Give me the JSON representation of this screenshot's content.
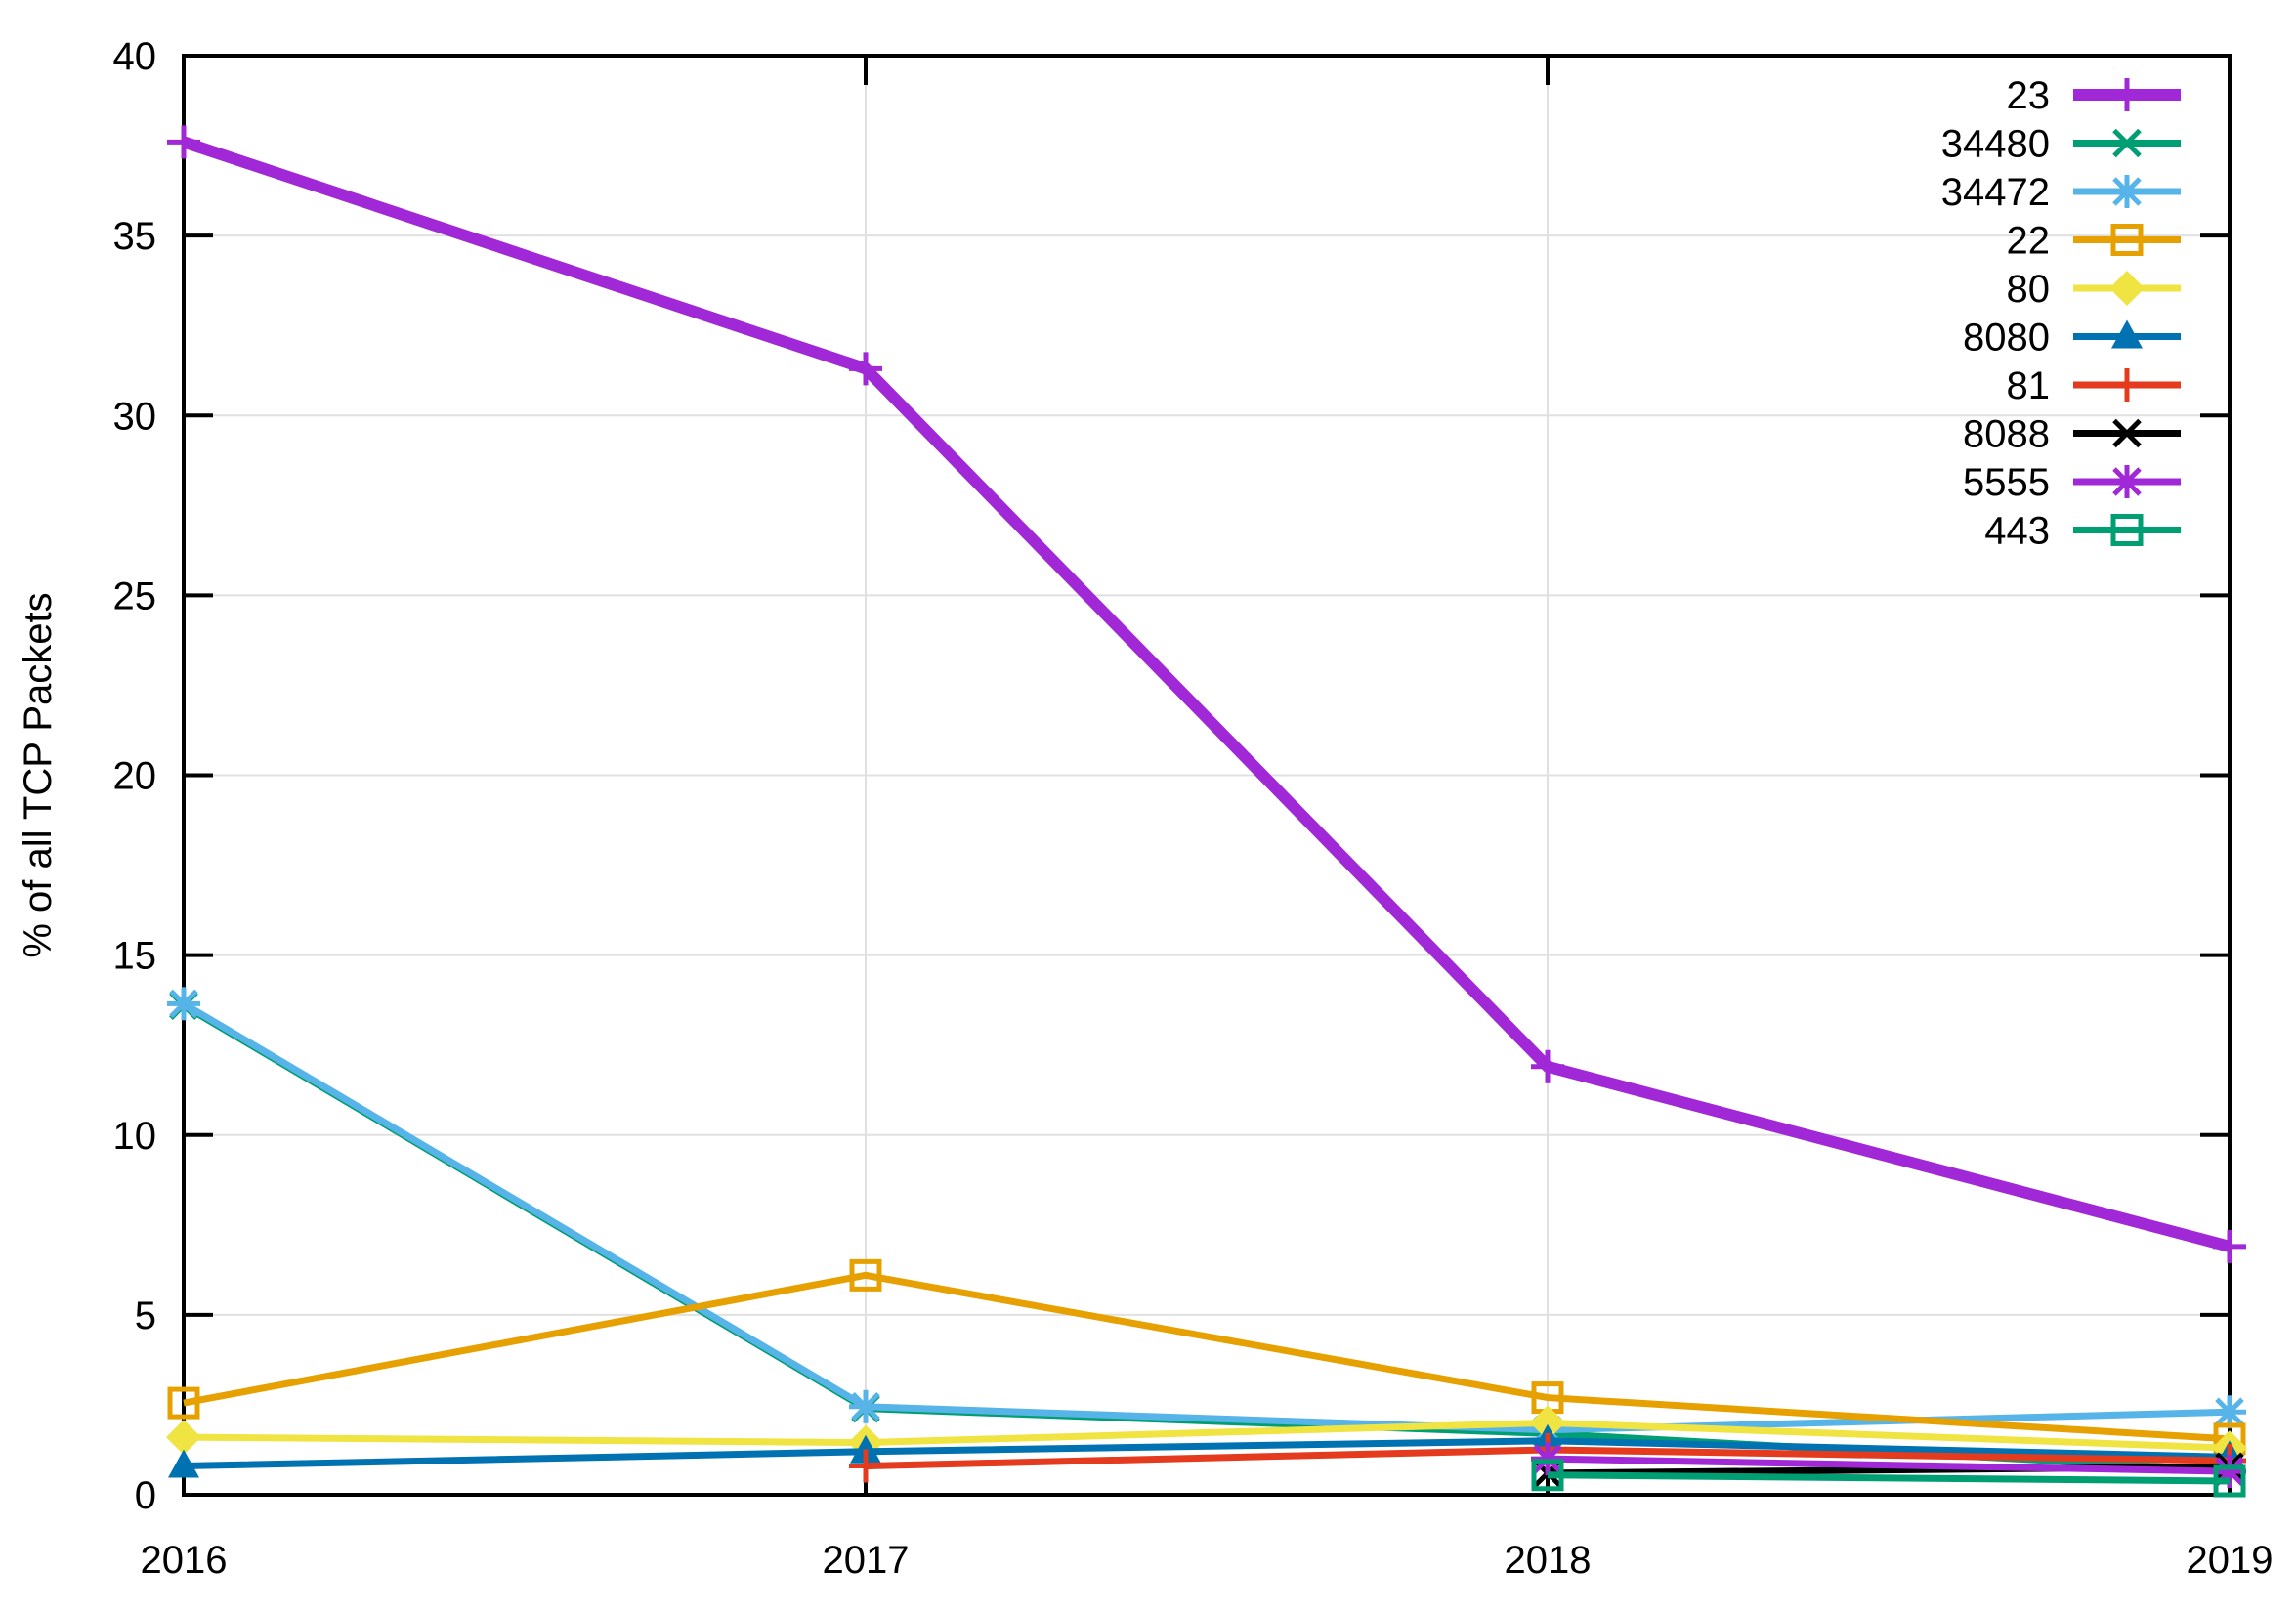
{
  "chart_data": {
    "type": "line",
    "title": "",
    "xlabel": "",
    "ylabel": "% of all TCP Packets",
    "x": [
      2016,
      2017,
      2018,
      2019
    ],
    "xticks": [
      "2016",
      "2017",
      "2018",
      "2019"
    ],
    "yticks": [
      "0",
      "5",
      "10",
      "15",
      "20",
      "25",
      "30",
      "35",
      "40"
    ],
    "ytick_values": [
      0,
      5,
      10,
      15,
      20,
      25,
      30,
      35,
      40
    ],
    "ylim": [
      0,
      40
    ],
    "grid": true,
    "legend_position": "top-right",
    "colors": {
      "purple": "#a128d6",
      "teal": "#009e73",
      "sky_blue": "#56b4e9",
      "orange": "#e6a000",
      "yellow": "#f0e442",
      "blue": "#0072b2",
      "red": "#e43a1d",
      "black": "#000000",
      "grid_gray": "#e0e0e0"
    },
    "series": [
      {
        "name": "23",
        "color": "#a128d6",
        "marker": "plus",
        "line_width": 12,
        "values": [
          37.6,
          31.3,
          11.9,
          6.9
        ]
      },
      {
        "name": "34480",
        "color": "#009e73",
        "marker": "x",
        "line_width": 7,
        "values": [
          13.6,
          2.4,
          1.7,
          0.68
        ]
      },
      {
        "name": "34472",
        "color": "#56b4e9",
        "marker": "asterisk",
        "line_width": 7,
        "values": [
          13.65,
          2.45,
          1.8,
          2.3
        ]
      },
      {
        "name": "22",
        "color": "#e6a000",
        "marker": "square-open",
        "line_width": 7,
        "values": [
          2.55,
          6.1,
          2.7,
          1.55
        ]
      },
      {
        "name": "80",
        "color": "#f0e442",
        "marker": "diamond-filled",
        "line_width": 7,
        "values": [
          1.6,
          1.45,
          2.0,
          1.3
        ]
      },
      {
        "name": "8080",
        "color": "#0072b2",
        "marker": "triangle-filled",
        "line_width": 7,
        "values": [
          0.8,
          1.2,
          1.5,
          1.05
        ]
      },
      {
        "name": "81",
        "color": "#e43a1d",
        "marker": "plus",
        "line_width": 7,
        "values": [
          null,
          0.8,
          1.25,
          0.95
        ]
      },
      {
        "name": "8088",
        "color": "#000000",
        "marker": "x",
        "line_width": 7,
        "values": [
          null,
          null,
          0.6,
          0.78
        ]
      },
      {
        "name": "5555",
        "color": "#a128d6",
        "marker": "asterisk",
        "line_width": 7,
        "values": [
          null,
          null,
          1.0,
          0.65
        ]
      },
      {
        "name": "443",
        "color": "#009e73",
        "marker": "square-open",
        "line_width": 7,
        "values": [
          null,
          null,
          0.55,
          0.38
        ]
      }
    ]
  }
}
